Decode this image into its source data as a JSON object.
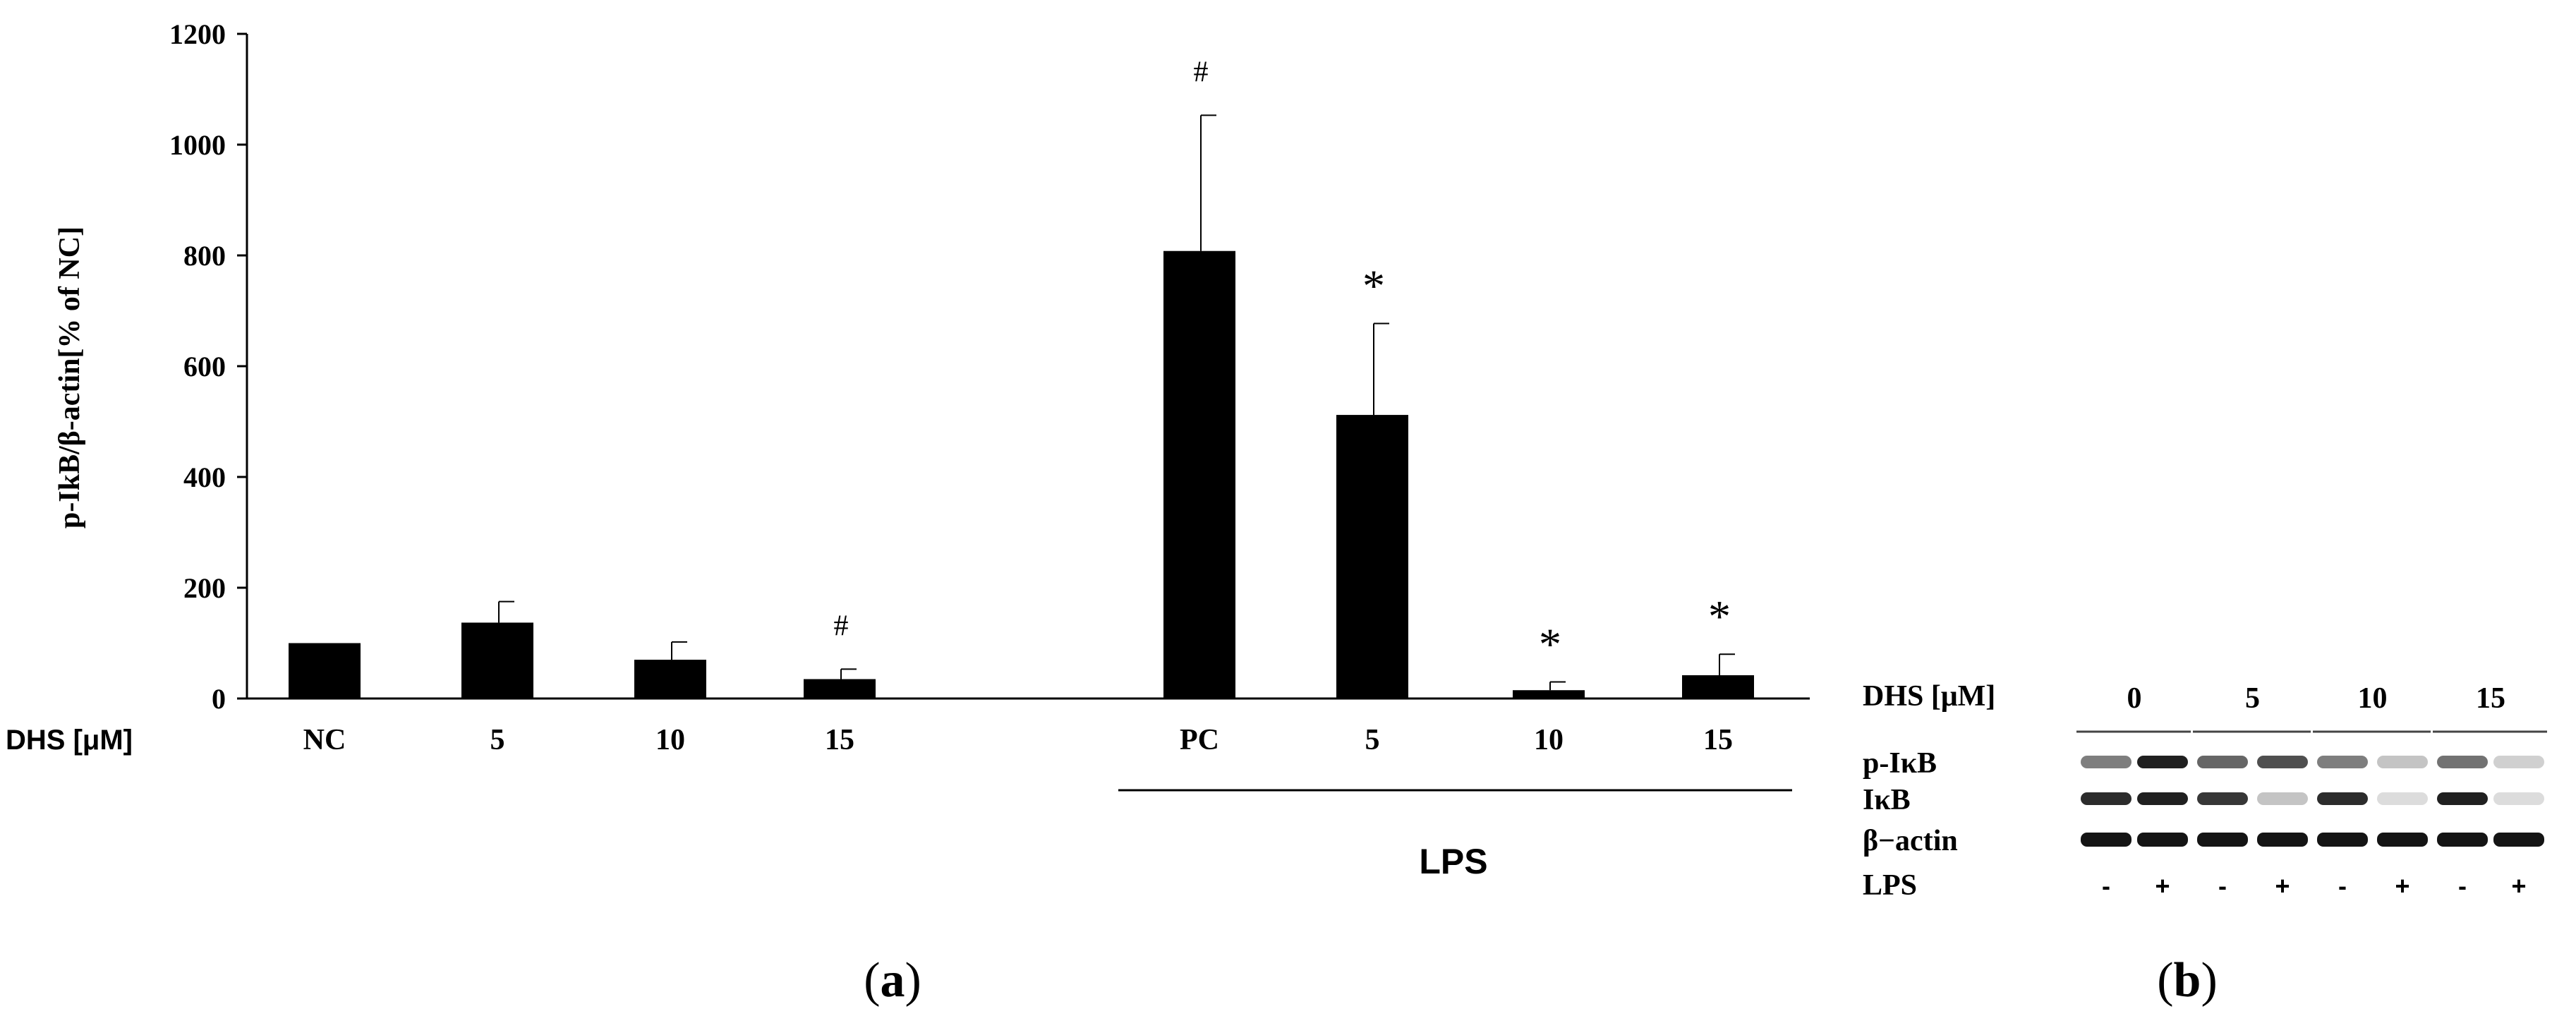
{
  "chart_data": {
    "type": "bar",
    "ylabel": "p-IkB/β-actin[% of NC]",
    "ylim": [
      0,
      1200
    ],
    "yticks": [
      0,
      200,
      400,
      600,
      800,
      1000,
      1200
    ],
    "x_row_label": "DHS [μM]",
    "group_label": "LPS",
    "categories": [
      "NC",
      "5",
      "10",
      "15",
      "PC",
      "5",
      "10",
      "15"
    ],
    "values": [
      100,
      137,
      70,
      35,
      808,
      512,
      15,
      42
    ],
    "errors": [
      0,
      38,
      32,
      18,
      245,
      165,
      15,
      38
    ],
    "annotations": [
      "",
      "",
      "",
      "#",
      "#",
      "*",
      "*",
      "*"
    ],
    "bar_color": "#000000",
    "panel_label": {
      "open": "(",
      "letter": "a",
      "close": ")"
    }
  },
  "blot": {
    "dhs_label": "DHS [μM]",
    "doses": [
      "0",
      "5",
      "10",
      "15"
    ],
    "rows": [
      "p-IκB",
      "IκB",
      "β−actin"
    ],
    "lps_label": "LPS",
    "lps_signs": [
      "-",
      "+",
      "-",
      "+",
      "-",
      "+",
      "-",
      "+"
    ],
    "panel_label": {
      "open": "(",
      "letter": "b",
      "close": ")"
    }
  }
}
